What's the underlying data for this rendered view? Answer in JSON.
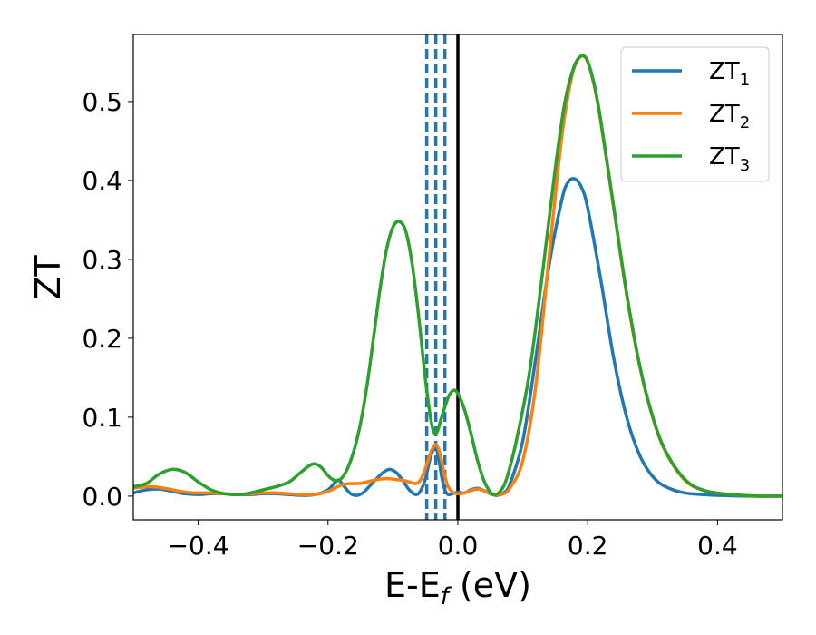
{
  "chart_data": {
    "type": "line",
    "xlabel": "E-E",
    "xlabel_sub": "f",
    "xlabel_unit": " (eV)",
    "ylabel": "ZT",
    "xlim": [
      -0.5,
      0.5
    ],
    "ylim": [
      -0.03,
      0.585
    ],
    "xticks": [
      -0.4,
      -0.2,
      0.0,
      0.2,
      0.4
    ],
    "xtick_labels": [
      "−0.4",
      "−0.2",
      "0.0",
      "0.2",
      "0.4"
    ],
    "yticks": [
      0.0,
      0.1,
      0.2,
      0.3,
      0.4,
      0.5
    ],
    "ytick_labels": [
      "0.0",
      "0.1",
      "0.2",
      "0.3",
      "0.4",
      "0.5"
    ],
    "grid": false,
    "legend_position": "top-right",
    "vertical_lines": [
      {
        "x": -0.048,
        "style": "dashed",
        "color": "#1f77b4"
      },
      {
        "x": -0.034,
        "style": "dashed",
        "color": "#1f77b4"
      },
      {
        "x": -0.02,
        "style": "dashed",
        "color": "#1f77b4"
      },
      {
        "x": 0.0,
        "style": "solid",
        "color": "#000000"
      }
    ],
    "series": [
      {
        "name": "ZT",
        "name_sub": "1",
        "color": "#1f77b4",
        "points": [
          [
            -0.5,
            0.004
          ],
          [
            -0.48,
            0.008
          ],
          [
            -0.46,
            0.009
          ],
          [
            -0.44,
            0.006
          ],
          [
            -0.42,
            0.003
          ],
          [
            -0.4,
            0.002
          ],
          [
            -0.38,
            0.003
          ],
          [
            -0.36,
            0.003
          ],
          [
            -0.34,
            0.002
          ],
          [
            -0.32,
            0.002
          ],
          [
            -0.3,
            0.003
          ],
          [
            -0.28,
            0.003
          ],
          [
            -0.26,
            0.002
          ],
          [
            -0.24,
            0.001
          ],
          [
            -0.22,
            0.002
          ],
          [
            -0.2,
            0.008
          ],
          [
            -0.185,
            0.02
          ],
          [
            -0.175,
            0.012
          ],
          [
            -0.165,
            0.003
          ],
          [
            -0.155,
            0.001
          ],
          [
            -0.145,
            0.005
          ],
          [
            -0.13,
            0.018
          ],
          [
            -0.115,
            0.03
          ],
          [
            -0.105,
            0.034
          ],
          [
            -0.095,
            0.03
          ],
          [
            -0.085,
            0.02
          ],
          [
            -0.075,
            0.008
          ],
          [
            -0.065,
            0.002
          ],
          [
            -0.058,
            0.006
          ],
          [
            -0.05,
            0.022
          ],
          [
            -0.042,
            0.05
          ],
          [
            -0.035,
            0.062
          ],
          [
            -0.03,
            0.05
          ],
          [
            -0.025,
            0.025
          ],
          [
            -0.02,
            0.008
          ],
          [
            -0.015,
            0.002
          ],
          [
            -0.008,
            0.003
          ],
          [
            0.0,
            0.005
          ],
          [
            0.01,
            0.004
          ],
          [
            0.02,
            0.008
          ],
          [
            0.03,
            0.01
          ],
          [
            0.04,
            0.007
          ],
          [
            0.05,
            0.003
          ],
          [
            0.06,
            0.001
          ],
          [
            0.07,
            0.004
          ],
          [
            0.08,
            0.015
          ],
          [
            0.1,
            0.07
          ],
          [
            0.12,
            0.175
          ],
          [
            0.14,
            0.29
          ],
          [
            0.16,
            0.375
          ],
          [
            0.17,
            0.398
          ],
          [
            0.18,
            0.402
          ],
          [
            0.19,
            0.392
          ],
          [
            0.2,
            0.365
          ],
          [
            0.22,
            0.275
          ],
          [
            0.24,
            0.175
          ],
          [
            0.26,
            0.1
          ],
          [
            0.28,
            0.052
          ],
          [
            0.3,
            0.025
          ],
          [
            0.32,
            0.012
          ],
          [
            0.35,
            0.004
          ],
          [
            0.4,
            0.001
          ],
          [
            0.45,
            0.0
          ],
          [
            0.5,
            0.0
          ]
        ]
      },
      {
        "name": "ZT",
        "name_sub": "2",
        "color": "#ff7f0e",
        "points": [
          [
            -0.5,
            0.01
          ],
          [
            -0.48,
            0.012
          ],
          [
            -0.46,
            0.011
          ],
          [
            -0.44,
            0.008
          ],
          [
            -0.42,
            0.005
          ],
          [
            -0.4,
            0.004
          ],
          [
            -0.38,
            0.004
          ],
          [
            -0.36,
            0.003
          ],
          [
            -0.34,
            0.002
          ],
          [
            -0.32,
            0.003
          ],
          [
            -0.3,
            0.004
          ],
          [
            -0.28,
            0.004
          ],
          [
            -0.26,
            0.003
          ],
          [
            -0.24,
            0.002
          ],
          [
            -0.22,
            0.002
          ],
          [
            -0.2,
            0.006
          ],
          [
            -0.185,
            0.012
          ],
          [
            -0.175,
            0.015
          ],
          [
            -0.165,
            0.016
          ],
          [
            -0.155,
            0.016
          ],
          [
            -0.145,
            0.017
          ],
          [
            -0.13,
            0.02
          ],
          [
            -0.115,
            0.022
          ],
          [
            -0.105,
            0.022
          ],
          [
            -0.095,
            0.021
          ],
          [
            -0.085,
            0.02
          ],
          [
            -0.075,
            0.018
          ],
          [
            -0.065,
            0.016
          ],
          [
            -0.058,
            0.02
          ],
          [
            -0.05,
            0.035
          ],
          [
            -0.042,
            0.055
          ],
          [
            -0.035,
            0.065
          ],
          [
            -0.03,
            0.06
          ],
          [
            -0.025,
            0.045
          ],
          [
            -0.02,
            0.025
          ],
          [
            -0.015,
            0.012
          ],
          [
            -0.008,
            0.005
          ],
          [
            0.0,
            0.003
          ],
          [
            0.01,
            0.004
          ],
          [
            0.02,
            0.007
          ],
          [
            0.03,
            0.009
          ],
          [
            0.04,
            0.007
          ],
          [
            0.05,
            0.004
          ],
          [
            0.06,
            0.002
          ],
          [
            0.07,
            0.003
          ],
          [
            0.08,
            0.01
          ],
          [
            0.1,
            0.045
          ],
          [
            0.12,
            0.14
          ],
          [
            0.14,
            0.3
          ],
          [
            0.16,
            0.455
          ],
          [
            0.175,
            0.53
          ],
          [
            0.185,
            0.553
          ],
          [
            0.193,
            0.558
          ],
          [
            0.2,
            0.55
          ],
          [
            0.21,
            0.52
          ],
          [
            0.22,
            0.475
          ],
          [
            0.24,
            0.365
          ],
          [
            0.26,
            0.255
          ],
          [
            0.28,
            0.165
          ],
          [
            0.3,
            0.1
          ],
          [
            0.32,
            0.056
          ],
          [
            0.35,
            0.02
          ],
          [
            0.38,
            0.007
          ],
          [
            0.42,
            0.002
          ],
          [
            0.46,
            0.0
          ],
          [
            0.5,
            0.0
          ]
        ]
      },
      {
        "name": "ZT",
        "name_sub": "3",
        "color": "#2ca02c",
        "points": [
          [
            -0.5,
            0.012
          ],
          [
            -0.48,
            0.016
          ],
          [
            -0.46,
            0.028
          ],
          [
            -0.44,
            0.034
          ],
          [
            -0.42,
            0.03
          ],
          [
            -0.4,
            0.018
          ],
          [
            -0.38,
            0.008
          ],
          [
            -0.36,
            0.003
          ],
          [
            -0.34,
            0.002
          ],
          [
            -0.32,
            0.004
          ],
          [
            -0.3,
            0.008
          ],
          [
            -0.28,
            0.012
          ],
          [
            -0.26,
            0.018
          ],
          [
            -0.245,
            0.028
          ],
          [
            -0.23,
            0.038
          ],
          [
            -0.22,
            0.041
          ],
          [
            -0.21,
            0.036
          ],
          [
            -0.2,
            0.026
          ],
          [
            -0.19,
            0.02
          ],
          [
            -0.18,
            0.022
          ],
          [
            -0.17,
            0.035
          ],
          [
            -0.16,
            0.058
          ],
          [
            -0.15,
            0.092
          ],
          [
            -0.14,
            0.14
          ],
          [
            -0.13,
            0.2
          ],
          [
            -0.12,
            0.262
          ],
          [
            -0.11,
            0.312
          ],
          [
            -0.1,
            0.341
          ],
          [
            -0.09,
            0.348
          ],
          [
            -0.08,
            0.335
          ],
          [
            -0.07,
            0.292
          ],
          [
            -0.06,
            0.225
          ],
          [
            -0.05,
            0.148
          ],
          [
            -0.04,
            0.09
          ],
          [
            -0.033,
            0.08
          ],
          [
            -0.025,
            0.1
          ],
          [
            -0.015,
            0.125
          ],
          [
            -0.007,
            0.134
          ],
          [
            0.0,
            0.13
          ],
          [
            0.01,
            0.11
          ],
          [
            0.02,
            0.08
          ],
          [
            0.03,
            0.046
          ],
          [
            0.04,
            0.02
          ],
          [
            0.05,
            0.005
          ],
          [
            0.057,
            0.002
          ],
          [
            0.065,
            0.006
          ],
          [
            0.075,
            0.022
          ],
          [
            0.09,
            0.07
          ],
          [
            0.11,
            0.155
          ],
          [
            0.13,
            0.28
          ],
          [
            0.15,
            0.415
          ],
          [
            0.165,
            0.5
          ],
          [
            0.178,
            0.542
          ],
          [
            0.186,
            0.555
          ],
          [
            0.193,
            0.558
          ],
          [
            0.2,
            0.551
          ],
          [
            0.21,
            0.522
          ],
          [
            0.22,
            0.477
          ],
          [
            0.24,
            0.367
          ],
          [
            0.26,
            0.257
          ],
          [
            0.28,
            0.166
          ],
          [
            0.3,
            0.101
          ],
          [
            0.32,
            0.057
          ],
          [
            0.35,
            0.021
          ],
          [
            0.38,
            0.007
          ],
          [
            0.42,
            0.002
          ],
          [
            0.46,
            0.0
          ],
          [
            0.5,
            0.0
          ]
        ]
      }
    ]
  }
}
